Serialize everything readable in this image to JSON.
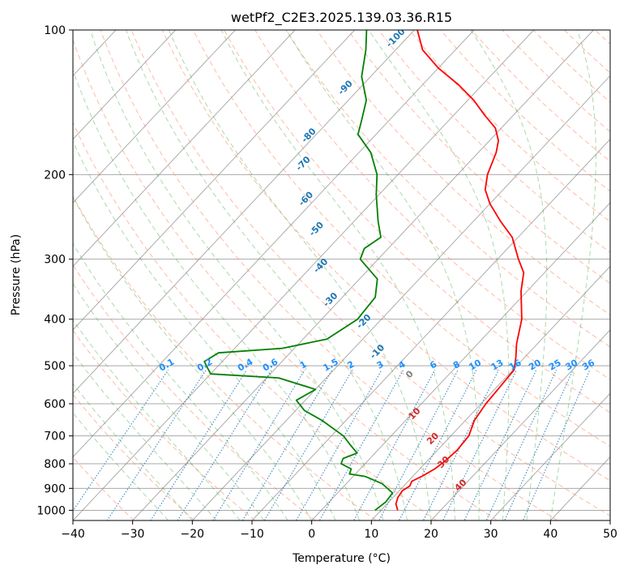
{
  "chart_data": {
    "type": "line",
    "title": "wetPf2_C2E3.2025.139.03.36.R15",
    "xlabel": "Temperature (°C)",
    "ylabel": "Pressure (hPa)",
    "xlim": [
      -40,
      50
    ],
    "ylim": [
      1050,
      100
    ],
    "y_scale": "log",
    "grid": true,
    "x_ticks": [
      -40,
      -30,
      -20,
      -10,
      0,
      10,
      20,
      30,
      40,
      50
    ],
    "y_ticks": [
      100,
      200,
      300,
      400,
      500,
      600,
      700,
      800,
      900,
      1000
    ],
    "skew": true,
    "colors": {
      "temperature": "#ff0000",
      "dewpoint": "#008000",
      "dry_adiabat": "#ff8c69",
      "moist_adiabat": "#2ca02c",
      "mixing_ratio": "#1f77b4",
      "isotherm": "#808080",
      "isobar": "#a9a9a9"
    },
    "series": [
      {
        "points": [
          {
            "p": 1000,
            "t": 12.8
          },
          {
            "p": 970,
            "t": 11.5
          },
          {
            "p": 940,
            "t": 10.8
          },
          {
            "p": 910,
            "t": 10.5
          },
          {
            "p": 890,
            "t": 11.0
          },
          {
            "p": 870,
            "t": 10.6
          },
          {
            "p": 850,
            "t": 11.5
          },
          {
            "p": 820,
            "t": 12.5
          },
          {
            "p": 790,
            "t": 13.0
          },
          {
            "p": 750,
            "t": 13.3
          },
          {
            "p": 700,
            "t": 13.0
          },
          {
            "p": 650,
            "t": 11.5
          },
          {
            "p": 600,
            "t": 10.8
          },
          {
            "p": 550,
            "t": 10.5
          },
          {
            "p": 510,
            "t": 10.2
          },
          {
            "p": 480,
            "t": 8.5
          },
          {
            "p": 450,
            "t": 6.5
          },
          {
            "p": 400,
            "t": 3.5
          },
          {
            "p": 350,
            "t": -1.0
          },
          {
            "p": 320,
            "t": -3.5
          },
          {
            "p": 300,
            "t": -6.5
          },
          {
            "p": 270,
            "t": -11.0
          },
          {
            "p": 250,
            "t": -15.5
          },
          {
            "p": 230,
            "t": -20.0
          },
          {
            "p": 215,
            "t": -23.0
          },
          {
            "p": 200,
            "t": -25.0
          },
          {
            "p": 180,
            "t": -27.0
          },
          {
            "p": 170,
            "t": -28.5
          },
          {
            "p": 160,
            "t": -31.0
          },
          {
            "p": 150,
            "t": -35.0
          },
          {
            "p": 140,
            "t": -39.0
          },
          {
            "p": 130,
            "t": -44.0
          },
          {
            "p": 120,
            "t": -50.0
          },
          {
            "p": 110,
            "t": -55.5
          },
          {
            "p": 100,
            "t": -59.5
          }
        ]
      },
      {
        "points": [
          {
            "p": 1000,
            "t": 9.0
          },
          {
            "p": 960,
            "t": 9.5
          },
          {
            "p": 920,
            "t": 9.2
          },
          {
            "p": 880,
            "t": 6.0
          },
          {
            "p": 850,
            "t": 2.0
          },
          {
            "p": 840,
            "t": -1.0
          },
          {
            "p": 820,
            "t": -1.5
          },
          {
            "p": 800,
            "t": -4.0
          },
          {
            "p": 780,
            "t": -4.5
          },
          {
            "p": 760,
            "t": -3.0
          },
          {
            "p": 730,
            "t": -5.5
          },
          {
            "p": 700,
            "t": -8.0
          },
          {
            "p": 650,
            "t": -14.0
          },
          {
            "p": 620,
            "t": -18.5
          },
          {
            "p": 590,
            "t": -21.5
          },
          {
            "p": 580,
            "t": -21.0
          },
          {
            "p": 560,
            "t": -20.0
          },
          {
            "p": 530,
            "t": -28.0
          },
          {
            "p": 520,
            "t": -40.0
          },
          {
            "p": 500,
            "t": -42.0
          },
          {
            "p": 490,
            "t": -43.0
          },
          {
            "p": 470,
            "t": -42.0
          },
          {
            "p": 460,
            "t": -32.0
          },
          {
            "p": 440,
            "t": -26.0
          },
          {
            "p": 400,
            "t": -24.0
          },
          {
            "p": 360,
            "t": -24.5
          },
          {
            "p": 330,
            "t": -27.0
          },
          {
            "p": 300,
            "t": -33.0
          },
          {
            "p": 285,
            "t": -34.0
          },
          {
            "p": 270,
            "t": -33.0
          },
          {
            "p": 250,
            "t": -36.0
          },
          {
            "p": 220,
            "t": -40.5
          },
          {
            "p": 200,
            "t": -43.5
          },
          {
            "p": 180,
            "t": -48.0
          },
          {
            "p": 165,
            "t": -53.0
          },
          {
            "p": 155,
            "t": -54.5
          },
          {
            "p": 140,
            "t": -57.0
          },
          {
            "p": 125,
            "t": -61.5
          },
          {
            "p": 110,
            "t": -65.0
          },
          {
            "p": 100,
            "t": -68.0
          }
        ]
      }
    ],
    "dry_adiabat_labels": [
      {
        "text": "-100",
        "p": 104,
        "t": -61.8
      },
      {
        "text": "-90",
        "p": 132,
        "t": -62.4
      },
      {
        "text": "-80",
        "p": 166,
        "t": -61.0
      },
      {
        "text": "-70",
        "p": 190,
        "t": -57.5
      },
      {
        "text": "-60",
        "p": 225,
        "t": -51.5
      },
      {
        "text": "-50",
        "p": 260,
        "t": -45.0
      },
      {
        "text": "-40",
        "p": 310,
        "t": -38.5
      },
      {
        "text": "-30",
        "p": 365,
        "t": -31.5
      },
      {
        "text": "-20",
        "p": 405,
        "t": -22.5
      },
      {
        "text": "-10",
        "p": 468,
        "t": -15.5
      },
      {
        "text": "0",
        "p": 522,
        "t": -6.5
      },
      {
        "text": "10",
        "p": 630,
        "t": 0.5
      },
      {
        "text": "20",
        "p": 710,
        "t": 7.5
      },
      {
        "text": "30",
        "p": 795,
        "t": 13.0
      },
      {
        "text": "40",
        "p": 888,
        "t": 19.5
      }
    ],
    "mixing_ratio_labels": [
      "0.1",
      "0.2",
      "0.4",
      "0.6",
      "1",
      "1.5",
      "2",
      "3",
      "4",
      "6",
      "8",
      "10",
      "13",
      "16",
      "20",
      "25",
      "30",
      "36"
    ]
  }
}
